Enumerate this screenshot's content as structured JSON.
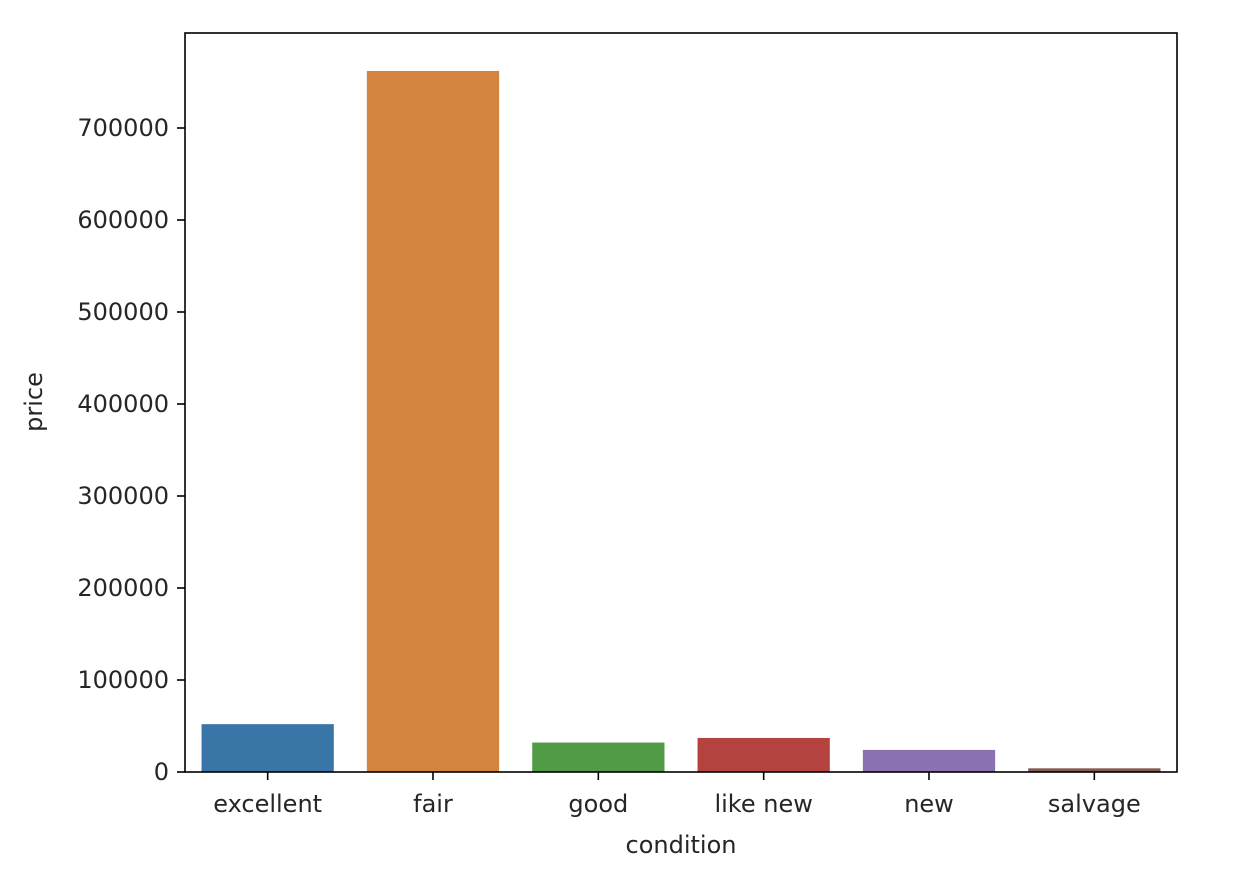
{
  "chart_data": {
    "type": "bar",
    "title": "",
    "xlabel": "condition",
    "ylabel": "price",
    "categories": [
      "excellent",
      "fair",
      "good",
      "like new",
      "new",
      "salvage"
    ],
    "values": [
      52000,
      762000,
      32000,
      37000,
      24000,
      4000
    ],
    "colors": [
      "#3a75a8",
      "#d5843f",
      "#519a46",
      "#b4423f",
      "#8a72b0",
      "#835b52"
    ],
    "ylim": [
      0,
      800000
    ],
    "yticks": [
      0,
      100000,
      200000,
      300000,
      400000,
      500000,
      600000,
      700000
    ],
    "ytick_labels": [
      "0",
      "100000",
      "200000",
      "300000",
      "400000",
      "500000",
      "600000",
      "700000"
    ],
    "grid": false,
    "legend": "none"
  }
}
